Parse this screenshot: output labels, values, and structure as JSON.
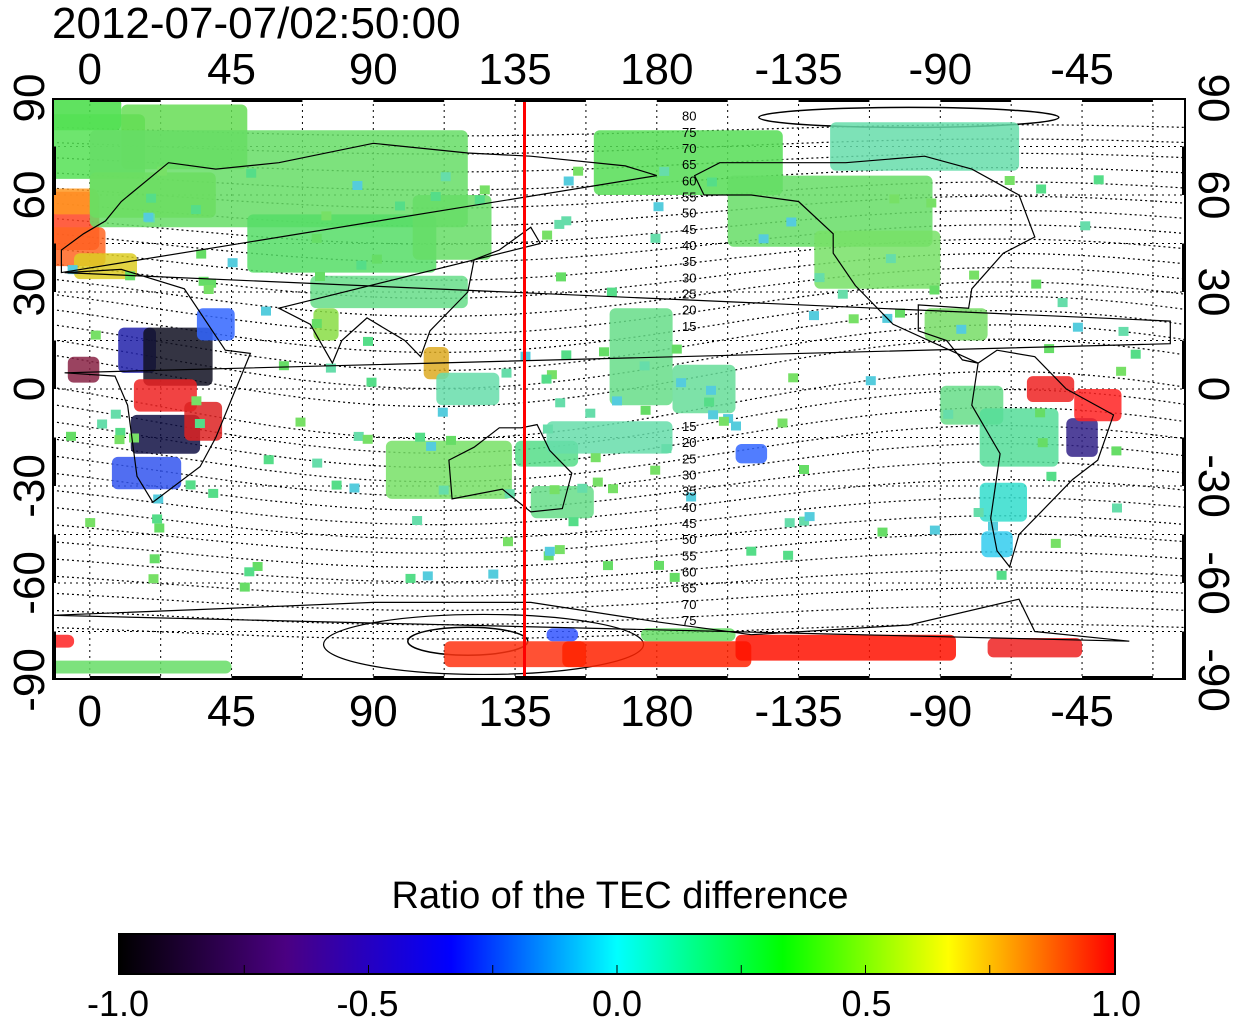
{
  "timestamp": "2012-07-07/02:50:00",
  "axes": {
    "x_ticks": [
      "0",
      "45",
      "90",
      "135",
      "180",
      "-135",
      "-90",
      "-45"
    ],
    "y_ticks_left": [
      "90",
      "60",
      "30",
      "0",
      "-30",
      "-60",
      "-90"
    ],
    "y_ticks_right": [
      "90",
      "60",
      "30",
      "0",
      "-30",
      "-60",
      "-90"
    ]
  },
  "contour_labels": {
    "north": [
      "80",
      "75",
      "70",
      "65",
      "60",
      "55",
      "50",
      "45",
      "40",
      "35",
      "30",
      "25",
      "20",
      "15"
    ],
    "south": [
      "15",
      "20",
      "25",
      "30",
      "35",
      "40",
      "45",
      "50",
      "55",
      "60",
      "65",
      "70",
      "75"
    ]
  },
  "colorbar": {
    "title": "Ratio of the TEC difference",
    "ticks": [
      "-1.0",
      "-0.5",
      "0.0",
      "0.5",
      "1.0"
    ],
    "colors": [
      "#000000",
      "#4b0082",
      "#0000ff",
      "#00ffff",
      "#00ff00",
      "#ffff00",
      "#ff0000"
    ]
  },
  "map": {
    "marker_longitude": 138,
    "marker_color": "#ff0000",
    "ocean_color": "#ffffff",
    "coast_color": "#000000"
  }
}
